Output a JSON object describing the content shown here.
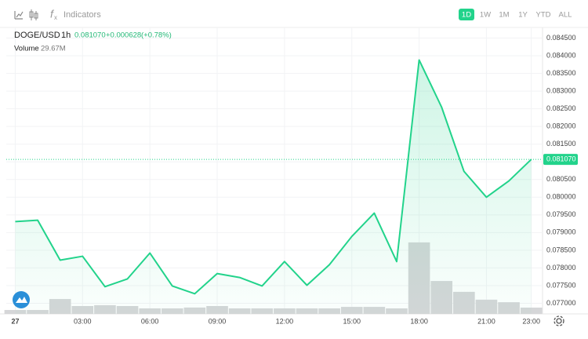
{
  "toolbar": {
    "indicators": "Indicators",
    "ranges": [
      "1D",
      "1W",
      "1M",
      "1Y",
      "YTD",
      "ALL"
    ],
    "active_range": 0
  },
  "chart_data": {
    "type": "line",
    "interval": "1h",
    "last": "0.081070",
    "change": "+0.000628",
    "change_pct": "(+0.78%)",
    "volume_label": "29.67M",
    "x": [
      0,
      1,
      2,
      3,
      4,
      5,
      6,
      7,
      8,
      9,
      10,
      11,
      12,
      13,
      14,
      15,
      16,
      17,
      18,
      19,
      20,
      21,
      22,
      23
    ],
    "series": [
      {
        "name": "DOGE/USD",
        "color": "#22d38b",
        "values": [
          0.07931,
          0.07935,
          0.07822,
          0.07833,
          0.07747,
          0.07769,
          0.07842,
          0.07749,
          0.07727,
          0.07784,
          0.07773,
          0.07749,
          0.07818,
          0.07751,
          0.07809,
          0.07889,
          0.07955,
          0.07818,
          0.08388,
          0.08255,
          0.08073,
          0.08,
          0.08046,
          0.08107
        ]
      },
      {
        "name": "Volume",
        "color": "#d5d6d8",
        "axis": "y2",
        "values": [
          18.5,
          18.5,
          70,
          37,
          41,
          37,
          26,
          26,
          30,
          37,
          26,
          26,
          26,
          26,
          26,
          33,
          33,
          26,
          337,
          155,
          104,
          67,
          55,
          29.67
        ]
      }
    ],
    "xlim": [
      -0.4,
      23.5
    ],
    "xticks": [
      {
        "value": 0,
        "label": "27"
      },
      {
        "value": 3,
        "label": "03:00"
      },
      {
        "value": 6,
        "label": "06:00"
      },
      {
        "value": 9,
        "label": "09:00"
      },
      {
        "value": 12,
        "label": "12:00"
      },
      {
        "value": 15,
        "label": "15:00"
      },
      {
        "value": 18,
        "label": "18:00"
      },
      {
        "value": 21,
        "label": "21:00"
      },
      {
        "value": 23,
        "label": "23:00"
      }
    ],
    "ylim": [
      0.0767,
      0.0848
    ],
    "yticks": [
      {
        "value": 0.077,
        "label": "0.077000"
      },
      {
        "value": 0.0775,
        "label": "0.077500"
      },
      {
        "value": 0.078,
        "label": "0.078000"
      },
      {
        "value": 0.0785,
        "label": "0.078500"
      },
      {
        "value": 0.079,
        "label": "0.079000"
      },
      {
        "value": 0.0795,
        "label": "0.079500"
      },
      {
        "value": 0.08,
        "label": "0.080000"
      },
      {
        "value": 0.0805,
        "label": "0.080500"
      },
      {
        "value": 0.081,
        "label": "0.081000"
      },
      {
        "value": 0.0815,
        "label": "0.081500"
      },
      {
        "value": 0.082,
        "label": "0.082000"
      },
      {
        "value": 0.0825,
        "label": "0.082500"
      },
      {
        "value": 0.083,
        "label": "0.083000"
      },
      {
        "value": 0.0835,
        "label": "0.083500"
      },
      {
        "value": 0.084,
        "label": "0.084000"
      },
      {
        "value": 0.0845,
        "label": "0.084500"
      }
    ],
    "y2lim": [
      0,
      1350
    ],
    "grid": true
  }
}
